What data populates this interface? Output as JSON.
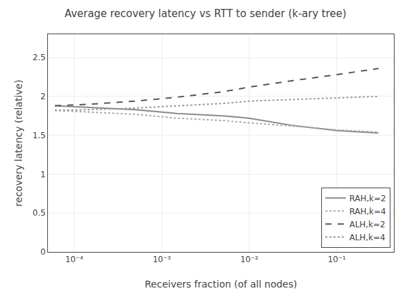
{
  "chart_data": {
    "type": "line",
    "title": "Average recovery latency vs RTT to sender (k-ary tree)",
    "xlabel": "Receivers fraction (of all nodes)",
    "ylabel": "recovery latency (relative)",
    "log": "x",
    "xlim": [
      5e-05,
      0.45
    ],
    "ylim": [
      0,
      2.8
    ],
    "xticks": [
      {
        "value": 0.0001,
        "label": "10⁻⁴"
      },
      {
        "value": 0.001,
        "label": "10⁻³"
      },
      {
        "value": 0.01,
        "label": "10⁻²"
      },
      {
        "value": 0.1,
        "label": "10⁻¹"
      }
    ],
    "yticks": [
      0,
      0.5,
      1,
      1.5,
      2,
      2.5
    ],
    "grid": true,
    "legend": "lower right",
    "x": [
      6e-05,
      0.00015,
      0.0005,
      0.0015,
      0.005,
      0.008,
      0.01,
      0.03,
      0.1,
      0.3
    ],
    "series": [
      {
        "name": "RAH,k=2",
        "color": "#888888",
        "line_style": "solid",
        "values": [
          1.88,
          1.86,
          1.83,
          1.78,
          1.75,
          1.73,
          1.72,
          1.63,
          1.56,
          1.53
        ]
      },
      {
        "name": "RAH,k=4",
        "color": "#aaaaaa",
        "line_style": "dotted",
        "values": [
          1.82,
          1.8,
          1.77,
          1.72,
          1.69,
          1.67,
          1.66,
          1.62,
          1.57,
          1.54
        ]
      },
      {
        "name": "ALH,k=2",
        "color": "#555555",
        "line_style": "dashed",
        "values": [
          1.88,
          1.9,
          1.94,
          1.99,
          2.06,
          2.1,
          2.12,
          2.2,
          2.28,
          2.36
        ]
      },
      {
        "name": "ALH,k=4",
        "color": "#999999",
        "line_style": "dotted",
        "values": [
          1.82,
          1.83,
          1.85,
          1.88,
          1.91,
          1.93,
          1.94,
          1.96,
          1.98,
          2.0
        ]
      }
    ]
  }
}
